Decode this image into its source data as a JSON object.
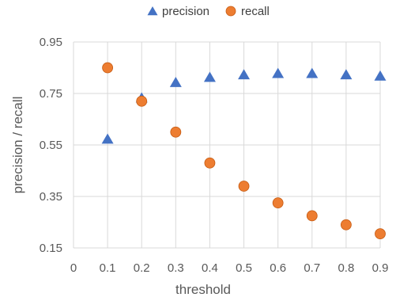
{
  "chart_data": {
    "type": "scatter",
    "xlabel": "threshold",
    "ylabel": "precision  / recall",
    "xlim": [
      0,
      0.9
    ],
    "ylim": [
      0.15,
      0.95
    ],
    "xticks": [
      0,
      0.1,
      0.2,
      0.3,
      0.4,
      0.5,
      0.6,
      0.7,
      0.8,
      0.9
    ],
    "yticks": [
      0.15,
      0.35,
      0.55,
      0.75,
      0.95
    ],
    "xtick_labels": [
      "0",
      "0.1",
      "0.2",
      "0.3",
      "0.4",
      "0.5",
      "0.6",
      "0.7",
      "0.8",
      "0.9"
    ],
    "ytick_labels": [
      "0.15",
      "0.35",
      "0.55",
      "0.75",
      "0.95"
    ],
    "grid": true,
    "legend_position": "top-center",
    "series": [
      {
        "name": "precision",
        "marker": "triangle",
        "color": "#4472c4",
        "x": [
          0.1,
          0.2,
          0.3,
          0.4,
          0.5,
          0.6,
          0.7,
          0.8,
          0.9
        ],
        "y": [
          0.57,
          0.73,
          0.79,
          0.81,
          0.82,
          0.825,
          0.825,
          0.82,
          0.815
        ]
      },
      {
        "name": "recall",
        "marker": "circle",
        "color": "#ed7d31",
        "x": [
          0.1,
          0.2,
          0.3,
          0.4,
          0.5,
          0.6,
          0.7,
          0.8,
          0.9
        ],
        "y": [
          0.85,
          0.72,
          0.6,
          0.48,
          0.39,
          0.325,
          0.275,
          0.24,
          0.205
        ]
      }
    ]
  }
}
